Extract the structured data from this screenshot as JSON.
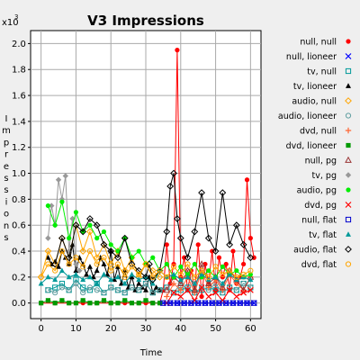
{
  "chart_data": {
    "type": "line",
    "title": "V3 Impressions",
    "xlabel": "Time",
    "ylabel": "Impressions",
    "y_multiplier_label": "x10",
    "y_multiplier_exp": "3",
    "xlim": [
      -3,
      63
    ],
    "ylim": [
      -0.12,
      2.1
    ],
    "xticks": [
      0,
      10,
      20,
      30,
      40,
      50,
      60
    ],
    "yticks": [
      0.0,
      0.2,
      0.4,
      0.6,
      0.8,
      1.0,
      1.2,
      1.4,
      1.6,
      1.8,
      2.0
    ],
    "ytick_labels": [
      "0.0",
      "0.2",
      "0.4",
      "0.6",
      "0.8",
      "1.0",
      "1.2",
      "1.4",
      "1.6",
      "1.8",
      "2.0"
    ],
    "grid": true,
    "legend_position": "right",
    "series": [
      {
        "name": "null, null",
        "color": "#ff0000",
        "marker": "circle-filled",
        "x": [
          0,
          4,
          8,
          12,
          16,
          20,
          24,
          28,
          30,
          32,
          34,
          35,
          36,
          37,
          38,
          39,
          40,
          41,
          42,
          43,
          44,
          45,
          46,
          47,
          48,
          49,
          50,
          51,
          52,
          53,
          54,
          55,
          56,
          57,
          58,
          59,
          60,
          61
        ],
        "y": [
          0.0,
          0.0,
          0.0,
          0.0,
          0.0,
          0.0,
          0.0,
          0.0,
          0.0,
          0.0,
          0.0,
          0.1,
          0.45,
          0.15,
          0.3,
          1.95,
          0.2,
          0.35,
          0.1,
          0.25,
          0.1,
          0.45,
          0.05,
          0.3,
          0.15,
          0.4,
          0.1,
          0.35,
          0.2,
          0.3,
          0.1,
          0.4,
          0.15,
          0.2,
          0.3,
          0.95,
          0.5,
          0.35
        ]
      },
      {
        "name": "null, lioneer",
        "color": "#0000ff",
        "marker": "x",
        "x": [
          35,
          37,
          39,
          41,
          43,
          45,
          47,
          49,
          51,
          53,
          55,
          57,
          59,
          61
        ],
        "y": [
          0.0,
          0.0,
          0.0,
          0.0,
          0.0,
          0.0,
          0.0,
          0.0,
          0.0,
          0.0,
          0.0,
          0.0,
          0.0,
          0.0
        ]
      },
      {
        "name": "tv, null",
        "color": "#009999",
        "marker": "square-open",
        "x": [
          2,
          4,
          6,
          8,
          10,
          12,
          14,
          16,
          18,
          20,
          22,
          24,
          26,
          28,
          30,
          32,
          34,
          36,
          38,
          40,
          42,
          44,
          46,
          48,
          50,
          52,
          54,
          56,
          58,
          60
        ],
        "y": [
          0.1,
          0.12,
          0.15,
          0.1,
          0.18,
          0.12,
          0.1,
          0.15,
          0.08,
          0.12,
          0.1,
          0.08,
          0.12,
          0.1,
          0.15,
          0.08,
          0.1,
          0.12,
          0.08,
          0.1,
          0.12,
          0.08,
          0.1,
          0.12,
          0.1,
          0.08,
          0.12,
          0.1,
          0.15,
          0.12
        ]
      },
      {
        "name": "tv, lioneer",
        "color": "#000000",
        "marker": "triangle-filled",
        "x": [
          2,
          3,
          4,
          5,
          6,
          7,
          8,
          9,
          10,
          11,
          12,
          13,
          14,
          15,
          16,
          17,
          18,
          19,
          20,
          21,
          22,
          23,
          24,
          25,
          26,
          27,
          28,
          29,
          30,
          31,
          32,
          33,
          34
        ],
        "y": [
          0.35,
          0.3,
          0.32,
          0.28,
          0.4,
          0.35,
          0.3,
          0.45,
          0.25,
          0.35,
          0.3,
          0.22,
          0.28,
          0.2,
          0.25,
          0.35,
          0.3,
          0.22,
          0.4,
          0.18,
          0.28,
          0.15,
          0.25,
          0.12,
          0.2,
          0.1,
          0.15,
          0.12,
          0.1,
          0.2,
          0.08,
          0.12,
          0.1
        ]
      },
      {
        "name": "audio, null",
        "color": "#ffa500",
        "marker": "diamond-open",
        "x": [
          0,
          2,
          4,
          6,
          8,
          10,
          12,
          14,
          16,
          18,
          20,
          22,
          24,
          26,
          28,
          30,
          32,
          34
        ],
        "y": [
          0.2,
          0.4,
          0.3,
          0.5,
          0.35,
          0.6,
          0.4,
          0.55,
          0.35,
          0.45,
          0.3,
          0.4,
          0.25,
          0.35,
          0.2,
          0.3,
          0.25,
          0.2
        ]
      },
      {
        "name": "audio, lioneer",
        "color": "#5f9ea0",
        "marker": "circle-open",
        "x": [
          2,
          4,
          6,
          8,
          10,
          12,
          14,
          16,
          18,
          20,
          22,
          24,
          26,
          28,
          30,
          32,
          34,
          36,
          38,
          40,
          42,
          44,
          46,
          48,
          50,
          52,
          54,
          56,
          58,
          60
        ],
        "y": [
          0.1,
          0.08,
          0.12,
          0.1,
          0.15,
          0.08,
          0.12,
          0.1,
          0.08,
          0.12,
          0.1,
          0.08,
          0.12,
          0.1,
          0.15,
          0.08,
          0.1,
          0.12,
          0.08,
          0.15,
          0.1,
          0.08,
          0.12,
          0.1,
          0.15,
          0.08,
          0.12,
          0.1,
          0.15,
          0.12
        ]
      },
      {
        "name": "dvd, null",
        "color": "#ff6633",
        "marker": "plus",
        "x": [
          36,
          38,
          40,
          42,
          44,
          46,
          48,
          50,
          52,
          54,
          56,
          58,
          60
        ],
        "y": [
          0.05,
          0.15,
          0.1,
          0.2,
          0.08,
          0.25,
          0.12,
          0.18,
          0.1,
          0.22,
          0.15,
          0.1,
          0.2
        ]
      },
      {
        "name": "dvd, lioneer",
        "color": "#009900",
        "marker": "square-filled",
        "x": [
          0,
          2,
          4,
          6,
          8,
          10,
          12,
          14,
          16,
          18,
          20,
          22,
          24,
          26,
          28,
          30,
          32,
          34
        ],
        "y": [
          0.0,
          0.02,
          0.0,
          0.02,
          0.0,
          0.0,
          0.02,
          0.0,
          0.0,
          0.02,
          0.0,
          0.0,
          0.02,
          0.0,
          0.0,
          0.02,
          0.0,
          0.0
        ]
      },
      {
        "name": "null, pg",
        "color": "#993333",
        "marker": "triangle-open",
        "x": [
          36,
          38,
          40,
          42,
          44,
          46,
          48,
          50,
          52,
          54,
          56,
          58,
          60
        ],
        "y": [
          0.1,
          0.2,
          0.15,
          0.25,
          0.1,
          0.3,
          0.15,
          0.2,
          0.12,
          0.25,
          0.18,
          0.1,
          0.2
        ]
      },
      {
        "name": "tv, pg",
        "color": "#999999",
        "marker": "diamond-filled",
        "x": [
          2,
          3,
          4,
          5,
          6,
          7,
          8,
          9,
          10,
          11
        ],
        "y": [
          0.5,
          0.75,
          0.6,
          0.95,
          0.8,
          0.98,
          0.4,
          0.65,
          0.3,
          0.25
        ]
      },
      {
        "name": "audio, pg",
        "color": "#00ee00",
        "marker": "circle-filled",
        "x": [
          2,
          4,
          6,
          8,
          10,
          12,
          14,
          16,
          18,
          20,
          22,
          24,
          26,
          28,
          30,
          32,
          34,
          36,
          38,
          40,
          42,
          44,
          46,
          48,
          50,
          52,
          54,
          56,
          58,
          60
        ],
        "y": [
          0.75,
          0.6,
          0.78,
          0.5,
          0.7,
          0.55,
          0.6,
          0.5,
          0.55,
          0.45,
          0.4,
          0.5,
          0.35,
          0.4,
          0.3,
          0.35,
          0.25,
          0.3,
          0.2,
          0.28,
          0.22,
          0.3,
          0.2,
          0.25,
          0.2,
          0.28,
          0.22,
          0.25,
          0.2,
          0.22
        ]
      },
      {
        "name": "dvd, pg",
        "color": "#ff0000",
        "marker": "x",
        "x": [
          36,
          38,
          40,
          42,
          44,
          46,
          48,
          50,
          52,
          54,
          56,
          58,
          60
        ],
        "y": [
          0.0,
          0.08,
          0.05,
          0.1,
          0.02,
          0.12,
          0.05,
          0.08,
          0.02,
          0.1,
          0.05,
          0.08,
          0.1
        ]
      },
      {
        "name": "null, flat",
        "color": "#0000cc",
        "marker": "square-open",
        "x": [
          35,
          37,
          39,
          41,
          43,
          45,
          47,
          49,
          51,
          53,
          55,
          57,
          59,
          61
        ],
        "y": [
          0.0,
          0.0,
          0.0,
          0.0,
          0.0,
          0.0,
          0.0,
          0.0,
          0.0,
          0.0,
          0.0,
          0.0,
          0.0,
          0.0
        ]
      },
      {
        "name": "tv, flat",
        "color": "#009999",
        "marker": "triangle-filled",
        "x": [
          0,
          2,
          4,
          6,
          8,
          10,
          12,
          14,
          16,
          18,
          20,
          22,
          24,
          26,
          28,
          30,
          32,
          34,
          36,
          38,
          40,
          42,
          44,
          46,
          48,
          50,
          52,
          54,
          56,
          58,
          60
        ],
        "y": [
          0.15,
          0.2,
          0.18,
          0.25,
          0.2,
          0.22,
          0.18,
          0.2,
          0.15,
          0.22,
          0.18,
          0.2,
          0.15,
          0.22,
          0.18,
          0.2,
          0.15,
          0.25,
          0.2,
          0.22,
          0.18,
          0.2,
          0.15,
          0.22,
          0.18,
          0.2,
          0.15,
          0.22,
          0.18,
          0.2,
          0.18
        ]
      },
      {
        "name": "audio, flat",
        "color": "#000000",
        "marker": "diamond-open",
        "x": [
          4,
          6,
          8,
          10,
          12,
          14,
          16,
          18,
          20,
          22,
          24,
          26,
          28,
          30,
          31,
          32,
          34,
          36,
          37,
          38,
          39,
          40,
          42,
          44,
          46,
          48,
          50,
          52,
          54,
          56,
          58,
          60
        ],
        "y": [
          0.3,
          0.5,
          0.35,
          0.6,
          0.55,
          0.65,
          0.6,
          0.45,
          0.4,
          0.35,
          0.5,
          0.3,
          0.25,
          0.2,
          0.3,
          0.18,
          0.25,
          0.55,
          0.9,
          1.0,
          0.65,
          0.5,
          0.35,
          0.55,
          0.85,
          0.5,
          0.4,
          0.85,
          0.45,
          0.6,
          0.45,
          0.35
        ]
      },
      {
        "name": "dvd, flat",
        "color": "#ffa500",
        "marker": "circle-open",
        "x": [
          0,
          2,
          4,
          6,
          8,
          10,
          12,
          14,
          16,
          18,
          20,
          22,
          24,
          26,
          28,
          30,
          32,
          34,
          36,
          38,
          40,
          42,
          44,
          46,
          48,
          50,
          52,
          54,
          56,
          58,
          60
        ],
        "y": [
          0.2,
          0.3,
          0.25,
          0.4,
          0.3,
          0.35,
          0.28,
          0.4,
          0.3,
          0.35,
          0.25,
          0.3,
          0.2,
          0.28,
          0.22,
          0.3,
          0.2,
          0.25,
          0.2,
          0.28,
          0.22,
          0.3,
          0.2,
          0.25,
          0.2,
          0.28,
          0.22,
          0.25,
          0.2,
          0.22,
          0.25
        ]
      }
    ]
  }
}
